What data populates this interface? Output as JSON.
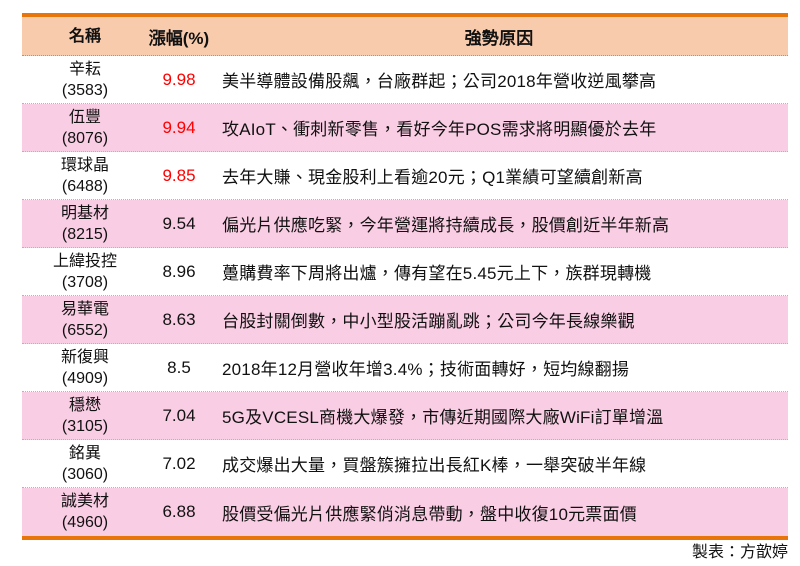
{
  "colors": {
    "orange_accent": "#E8740C",
    "header_bg": "#F8CBAD",
    "pink_row": "#F9CDE3",
    "gain_up_red": "#FF0000",
    "text": "#111111"
  },
  "chart_data": {
    "type": "table",
    "columns": [
      "名稱",
      "漲幅(%)",
      "強勢原因"
    ],
    "rows": [
      {
        "name": "辛耘",
        "code": "(3583)",
        "gain": "9.98",
        "gain_color": "#FF0000",
        "reason": "美半導體設備股飆，台廠群起；公司2018年營收逆風攀高"
      },
      {
        "name": "伍豐",
        "code": "(8076)",
        "gain": "9.94",
        "gain_color": "#FF0000",
        "reason": "攻AIoT、衝刺新零售，看好今年POS需求將明顯優於去年"
      },
      {
        "name": "環球晶",
        "code": "(6488)",
        "gain": "9.85",
        "gain_color": "#FF0000",
        "reason": "去年大賺、現金股利上看逾20元；Q1業績可望續創新高"
      },
      {
        "name": "明基材",
        "code": "(8215)",
        "gain": "9.54",
        "gain_color": "#111111",
        "reason": "偏光片供應吃緊，今年營運將持續成長，股價創近半年新高"
      },
      {
        "name": "上緯投控",
        "code": "(3708)",
        "gain": "8.96",
        "gain_color": "#111111",
        "reason": "躉購費率下周將出爐，傳有望在5.45元上下，族群現轉機"
      },
      {
        "name": "易華電",
        "code": "(6552)",
        "gain": "8.63",
        "gain_color": "#111111",
        "reason": "台股封關倒數，中小型股活蹦亂跳；公司今年長線樂觀"
      },
      {
        "name": "新復興",
        "code": "(4909)",
        "gain": "8.5",
        "gain_color": "#111111",
        "reason": "2018年12月營收年增3.4%；技術面轉好，短均線翻揚"
      },
      {
        "name": "穩懋",
        "code": "(3105)",
        "gain": "7.04",
        "gain_color": "#111111",
        "reason": "5G及VCESL商機大爆發，市傳近期國際大廠WiFi訂單增溫"
      },
      {
        "name": "銘異",
        "code": "(3060)",
        "gain": "7.02",
        "gain_color": "#111111",
        "reason": "成交爆出大量，買盤簇擁拉出長紅K棒，一舉突破半年線"
      },
      {
        "name": "誠美材",
        "code": "(4960)",
        "gain": "6.88",
        "gain_color": "#111111",
        "reason": "股價受偏光片供應緊俏消息帶動，盤中收復10元票面價"
      }
    ],
    "footer": "製表：方歆婷"
  }
}
